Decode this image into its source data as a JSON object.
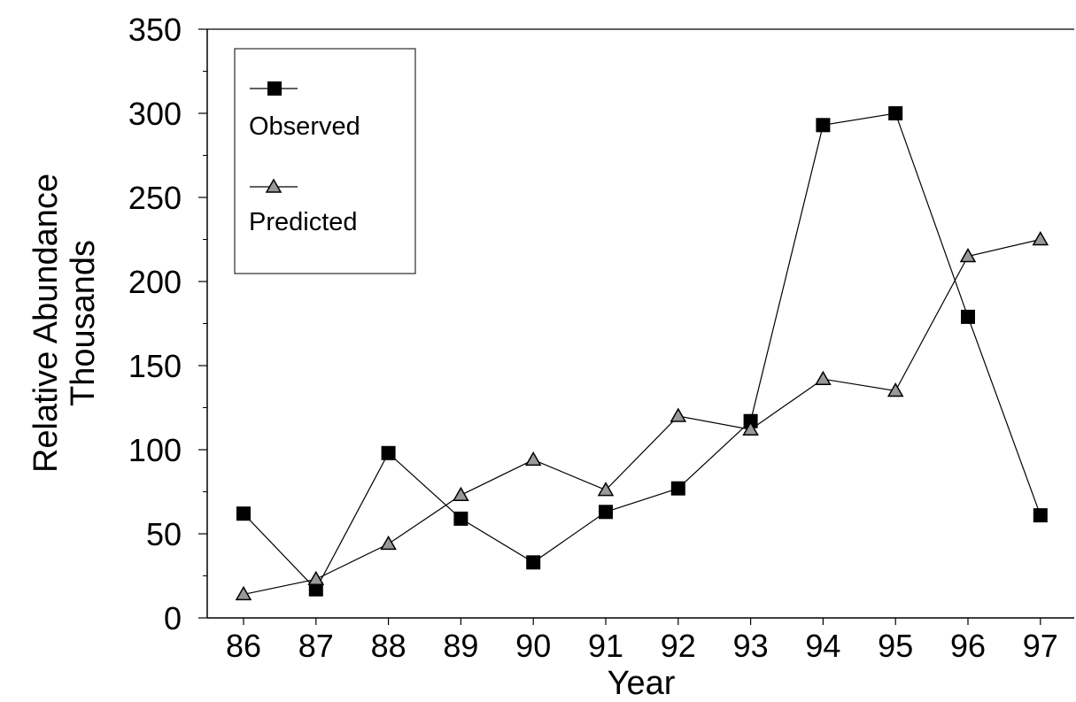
{
  "chart_data": {
    "type": "line",
    "x": [
      86,
      87,
      88,
      89,
      90,
      91,
      92,
      93,
      94,
      95,
      96,
      97
    ],
    "x_tick_labels": [
      "86",
      "87",
      "88",
      "89",
      "90",
      "91",
      "92",
      "93",
      "94",
      "95",
      "96",
      "97"
    ],
    "y_tick_labels": [
      "0",
      "50",
      "100",
      "150",
      "200",
      "250",
      "300",
      "350"
    ],
    "ylim": [
      0,
      350
    ],
    "xlabel": "Year",
    "ylabel_line1": "Relative Abundance",
    "ylabel_line2": "Thousands",
    "legend_placement": "top-left",
    "grid": false,
    "series": [
      {
        "name": "Observed",
        "marker": "square",
        "values": [
          62,
          17,
          98,
          59,
          33,
          63,
          77,
          117,
          293,
          300,
          179,
          61
        ]
      },
      {
        "name": "Predicted",
        "marker": "triangle",
        "values": [
          14,
          23,
          44,
          73,
          94,
          76,
          120,
          112,
          142,
          135,
          215,
          225
        ]
      }
    ]
  }
}
